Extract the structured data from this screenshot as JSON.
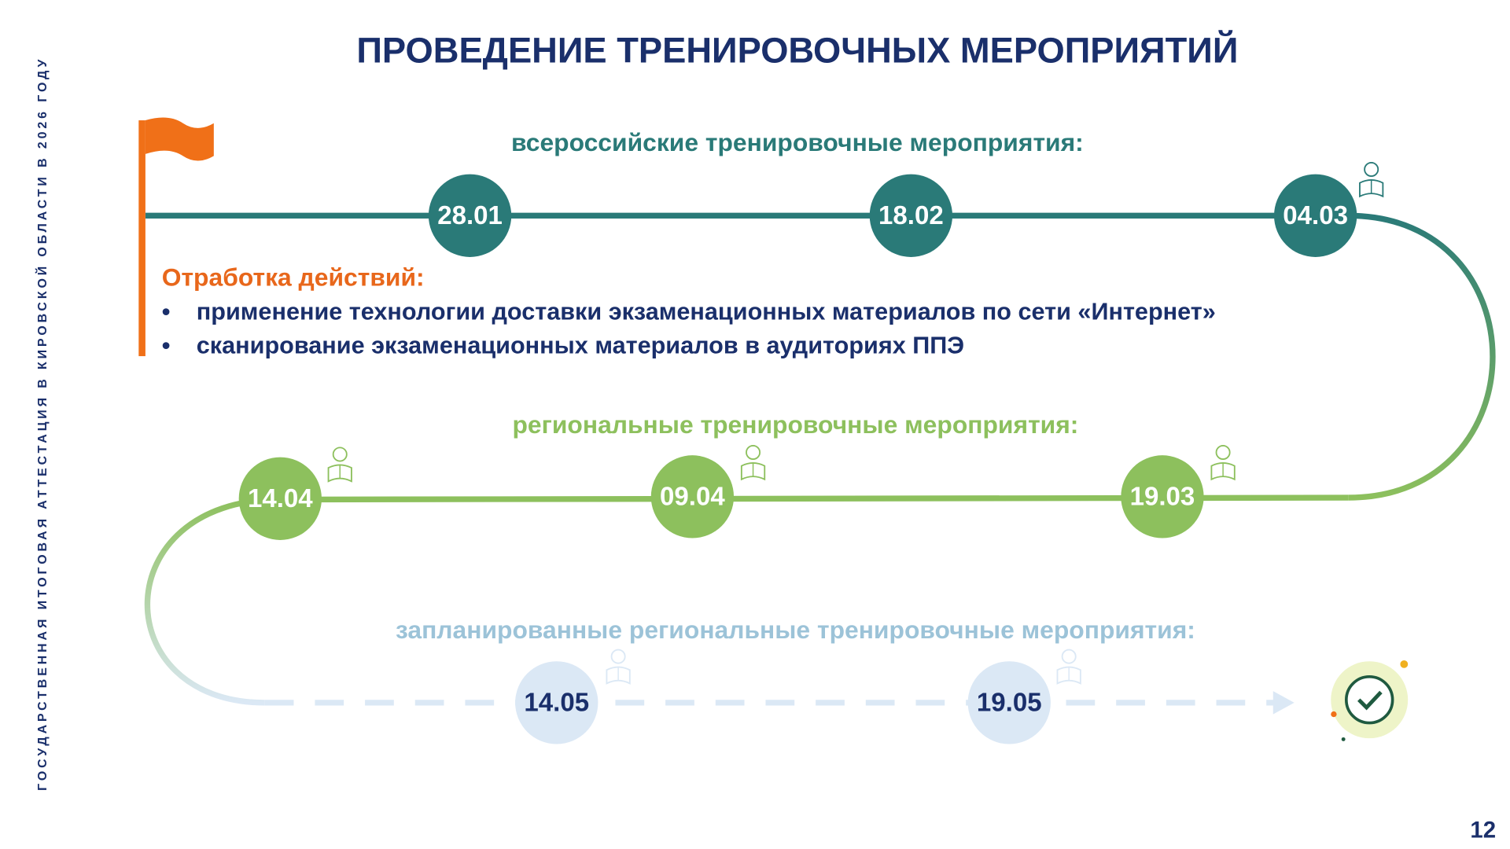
{
  "sidebar": "ГОСУДАРСТВЕННАЯ ИТОГОВАЯ АТТЕСТАЦИЯ В КИРОВСКОЙ ОБЛАСТИ В 2026 ГОДУ",
  "title": "ПРОВЕДЕНИЕ ТРЕНИРОВОЧНЫХ МЕРОПРИЯТИЙ",
  "national": {
    "heading": "всероссийские тренировочные мероприятия:",
    "dates": [
      "28.01",
      "18.02",
      "04.03"
    ]
  },
  "actions": {
    "heading": "Отработка действий:",
    "bullets": [
      "применение технологии доставки экзаменационных материалов по сети «Интернет»",
      "сканирование экзаменационных материалов в аудиториях ППЭ"
    ]
  },
  "regional": {
    "heading": "региональные тренировочные мероприятия:",
    "dates": [
      "14.04",
      "09.04",
      "19.03"
    ]
  },
  "planned": {
    "heading": "запланированные региональные тренировочные мероприятия:",
    "dates": [
      "14.05",
      "19.05"
    ]
  },
  "page_number": "12"
}
